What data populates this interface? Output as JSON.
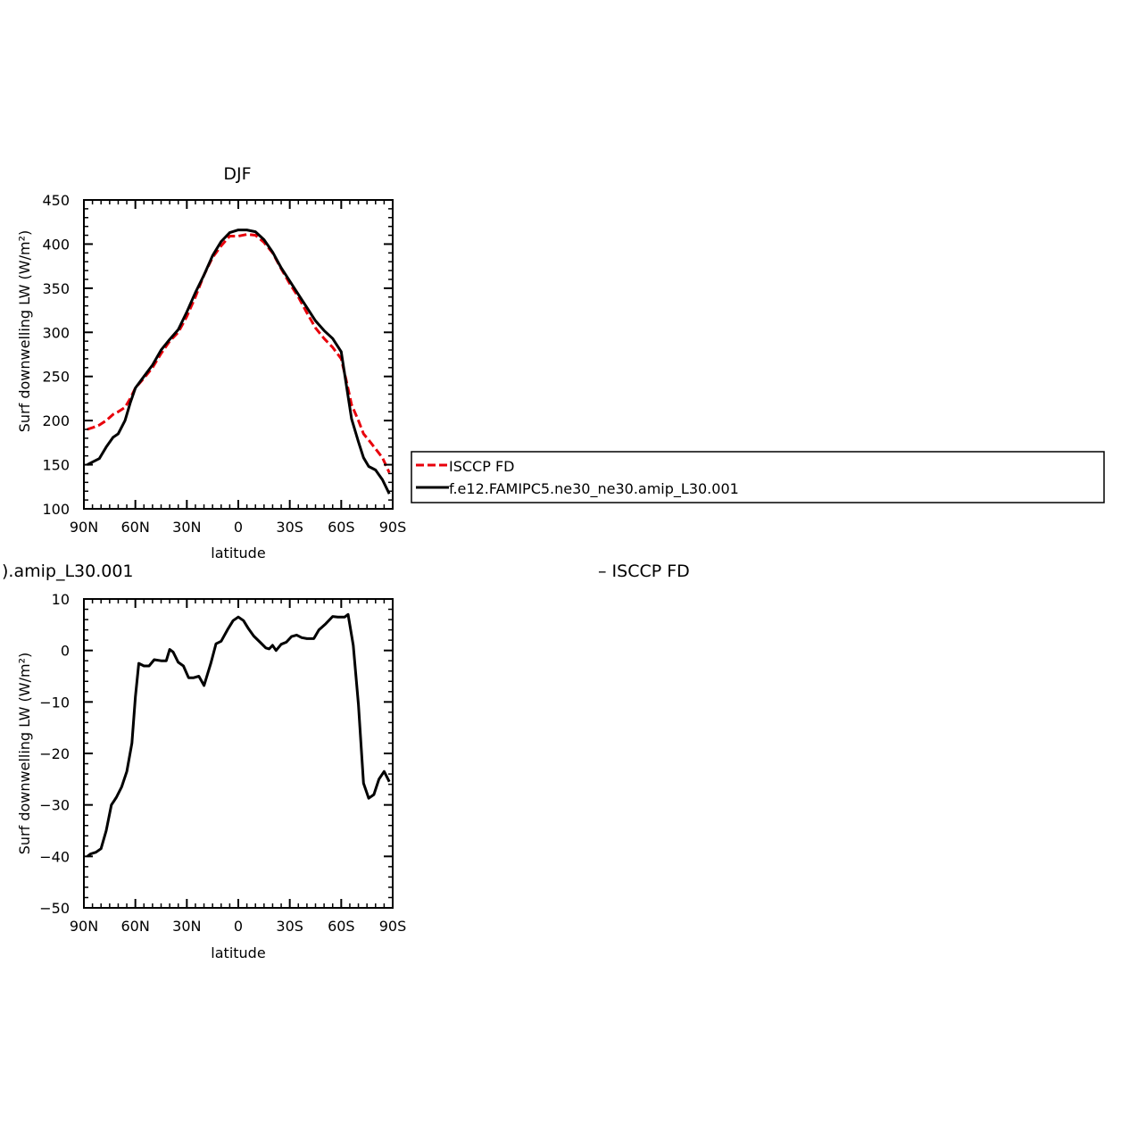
{
  "figure": {
    "top_title": "DJF",
    "bottom_title_fragment": ").amip_L30.001",
    "bottom_title_right": "– ISCCP FD"
  },
  "legend": {
    "entries": [
      {
        "label": "ISCCP FD",
        "color": "#e8000b",
        "style": "dashed"
      },
      {
        "label": "f.e12.FAMIPC5.ne30_ne30.amip_L30.001",
        "color": "#000000",
        "style": "solid"
      }
    ]
  },
  "chart_data": [
    {
      "type": "line",
      "title": "DJF",
      "xlabel": "latitude",
      "ylabel": "Surf downwelling LW (W/m²)",
      "xlim": [
        90,
        -90
      ],
      "ylim": [
        100,
        450
      ],
      "xticks": [
        90,
        60,
        30,
        0,
        -30,
        -60,
        -90
      ],
      "xtick_labels": [
        "90N",
        "60N",
        "30N",
        "0",
        "30S",
        "60S",
        "90S"
      ],
      "yticks": [
        100,
        150,
        200,
        250,
        300,
        350,
        400,
        450
      ],
      "ytick_labels": [
        "100",
        "150",
        "200",
        "250",
        "300",
        "350",
        "400",
        "450"
      ],
      "grid": false,
      "series": [
        {
          "name": "ISCCP FD",
          "color": "#e8000b",
          "style": "dashed",
          "x": [
            88,
            85,
            81,
            77,
            73,
            70,
            66,
            63,
            60,
            55,
            50,
            45,
            40,
            35,
            30,
            25,
            20,
            15,
            10,
            5,
            0,
            -5,
            -10,
            -15,
            -20,
            -25,
            -30,
            -35,
            -40,
            -45,
            -50,
            -55,
            -60,
            -63,
            -66,
            -70,
            -73,
            -76,
            -80,
            -84,
            -88
          ],
          "y": [
            190,
            192,
            195,
            200,
            207,
            210,
            215,
            225,
            237,
            248,
            260,
            276,
            290,
            300,
            318,
            340,
            365,
            385,
            398,
            409,
            409,
            411,
            410,
            402,
            390,
            372,
            355,
            340,
            322,
            305,
            293,
            283,
            270,
            245,
            218,
            200,
            185,
            178,
            168,
            158,
            141
          ]
        },
        {
          "name": "f.e12.FAMIPC5.ne30_ne30.amip_L30.001",
          "color": "#000000",
          "style": "solid",
          "x": [
            88,
            85,
            81,
            77,
            73,
            70,
            66,
            63,
            60,
            55,
            50,
            45,
            40,
            35,
            30,
            25,
            20,
            15,
            10,
            5,
            0,
            -5,
            -10,
            -15,
            -20,
            -25,
            -30,
            -35,
            -40,
            -45,
            -50,
            -55,
            -60,
            -63,
            -66,
            -70,
            -73,
            -76,
            -80,
            -84,
            -88
          ],
          "y": [
            150,
            153,
            157,
            170,
            181,
            185,
            200,
            220,
            237,
            250,
            263,
            280,
            292,
            303,
            323,
            345,
            365,
            387,
            403,
            413,
            416,
            416,
            414,
            405,
            391,
            373,
            358,
            343,
            328,
            313,
            302,
            293,
            278,
            240,
            202,
            176,
            158,
            148,
            144,
            133,
            117
          ]
        }
      ]
    },
    {
      "type": "line",
      "title": ").amip_L30.001",
      "xlabel": "latitude",
      "ylabel": "Surf downwelling LW (W/m²)",
      "xlim": [
        90,
        -90
      ],
      "ylim": [
        -50,
        10
      ],
      "xticks": [
        90,
        60,
        30,
        0,
        -30,
        -60,
        -90
      ],
      "xtick_labels": [
        "90N",
        "60N",
        "30N",
        "0",
        "30S",
        "60S",
        "90S"
      ],
      "yticks": [
        -50,
        -40,
        -30,
        -20,
        -10,
        0,
        10
      ],
      "ytick_labels": [
        "−50",
        "−40",
        "−30",
        "−20",
        "−10",
        "0",
        "10"
      ],
      "grid": false,
      "series": [
        {
          "color": "#000000",
          "style": "solid",
          "x": [
            88,
            86,
            83,
            80,
            77,
            74,
            71,
            68,
            65,
            62,
            60,
            58,
            55,
            52,
            49,
            45,
            42,
            40,
            38,
            35,
            32,
            29,
            26,
            23,
            20,
            16,
            13,
            10,
            6,
            3,
            0,
            -3,
            -6,
            -9,
            -13,
            -16,
            -18,
            -20,
            -22,
            -25,
            -28,
            -31,
            -34,
            -37,
            -40,
            -44,
            -47,
            -51,
            -55,
            -58,
            -62,
            -64,
            -67,
            -70,
            -73,
            -76,
            -79,
            -82,
            -85,
            -88
          ],
          "y": [
            -40,
            -39.5,
            -39.2,
            -38.5,
            -35,
            -30,
            -28.5,
            -26.5,
            -23.5,
            -18,
            -9,
            -2.5,
            -3,
            -3,
            -1.8,
            -2,
            -2,
            0.2,
            -0.3,
            -2.3,
            -3,
            -5.3,
            -5.3,
            -5,
            -6.8,
            -2.5,
            1.3,
            1.8,
            4.2,
            5.8,
            6.5,
            5.8,
            4.2,
            2.8,
            1.5,
            0.5,
            0.3,
            1,
            0,
            1.2,
            1.6,
            2.7,
            3,
            2.5,
            2.3,
            2.3,
            4,
            5.2,
            6.6,
            6.5,
            6.5,
            7,
            1,
            -10.5,
            -25.8,
            -28.7,
            -28,
            -25,
            -23.5,
            -25.5
          ]
        }
      ]
    }
  ]
}
